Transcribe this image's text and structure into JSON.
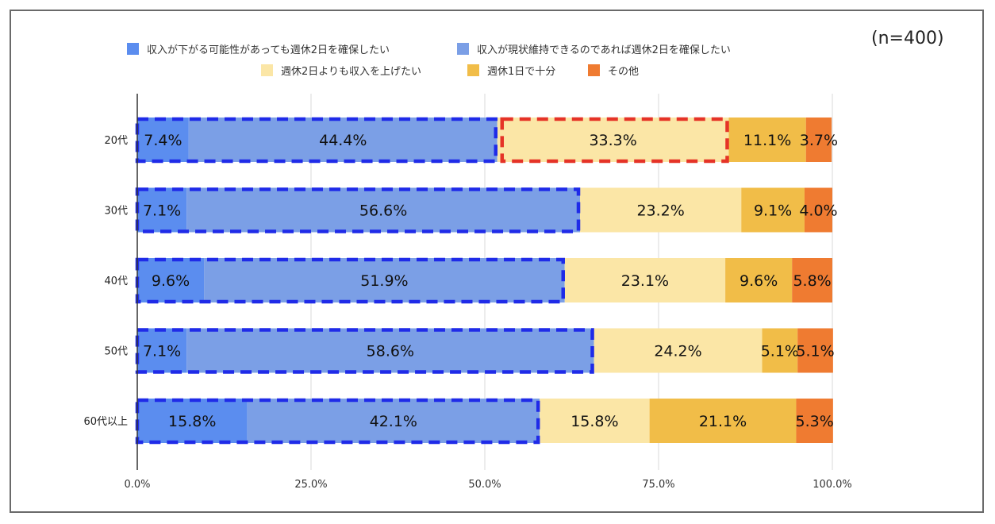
{
  "note": "(n=400)",
  "colors": {
    "series": [
      "#5b8def",
      "#7b9fe6",
      "#fbe6a6",
      "#f1bd48",
      "#ef7b31"
    ],
    "highlight_blue": "#1f2be8",
    "highlight_red": "#e53327",
    "grid": "#d9d9d9",
    "axis": "#333333"
  },
  "legend": [
    {
      "label": "収入が下がる可能性があっても週休2日を確保したい"
    },
    {
      "label": "収入が現状維持できるのであれば週休2日を確保したい"
    },
    {
      "label": "週休2日よりも収入を上げたい"
    },
    {
      "label": "週休1日で十分"
    },
    {
      "label": "その他"
    }
  ],
  "chart_data": {
    "type": "bar",
    "orientation": "horizontal",
    "stacked": "100%",
    "categories": [
      "20代",
      "30代",
      "40代",
      "50代",
      "60代以上"
    ],
    "series": [
      {
        "name": "収入が下がる可能性があっても週休2日を確保したい",
        "values": [
          7.4,
          7.1,
          9.6,
          7.1,
          15.8
        ],
        "labels": [
          "7.4%",
          "7.1%",
          "9.6%",
          "7.1%",
          "15.8%"
        ]
      },
      {
        "name": "収入が現状維持できるのであれば週休2日を確保したい",
        "values": [
          44.4,
          56.6,
          51.9,
          58.6,
          42.1
        ],
        "labels": [
          "44.4%",
          "56.6%",
          "51.9%",
          "58.6%",
          "42.1%"
        ]
      },
      {
        "name": "週休2日よりも収入を上げたい",
        "values": [
          33.3,
          23.2,
          23.1,
          24.2,
          15.8
        ],
        "labels": [
          "33.3%",
          "23.2%",
          "23.1%",
          "24.2%",
          "15.8%"
        ]
      },
      {
        "name": "週休1日で十分",
        "values": [
          11.1,
          9.1,
          9.6,
          5.1,
          21.1
        ],
        "labels": [
          "11.1%",
          "9.1%",
          "9.6%",
          "5.1%",
          "21.1%"
        ]
      },
      {
        "name": "その他",
        "values": [
          3.7,
          4.0,
          5.8,
          5.1,
          5.3
        ],
        "labels": [
          "3.7%",
          "4.0%",
          "5.8%",
          "5.1%",
          "5.3%"
        ]
      }
    ],
    "x_ticks": [
      "0.0%",
      "25.0%",
      "50.0%",
      "75.0%",
      "100.0%"
    ],
    "xlim": [
      0,
      100
    ],
    "grid": true,
    "legend_position": "top",
    "annotations": [
      {
        "style": "dashed-box",
        "color": "blue",
        "category_index": 0,
        "series_from": 0,
        "series_to": 1
      },
      {
        "style": "dashed-box",
        "color": "red",
        "category_index": 0,
        "series_from": 2,
        "series_to": 2
      },
      {
        "style": "dashed-box",
        "color": "blue",
        "category_index": 1,
        "series_from": 0,
        "series_to": 1
      },
      {
        "style": "dashed-box",
        "color": "blue",
        "category_index": 2,
        "series_from": 0,
        "series_to": 1
      },
      {
        "style": "dashed-box",
        "color": "blue",
        "category_index": 3,
        "series_from": 0,
        "series_to": 1
      },
      {
        "style": "dashed-box",
        "color": "blue",
        "category_index": 4,
        "series_from": 0,
        "series_to": 1
      }
    ]
  }
}
